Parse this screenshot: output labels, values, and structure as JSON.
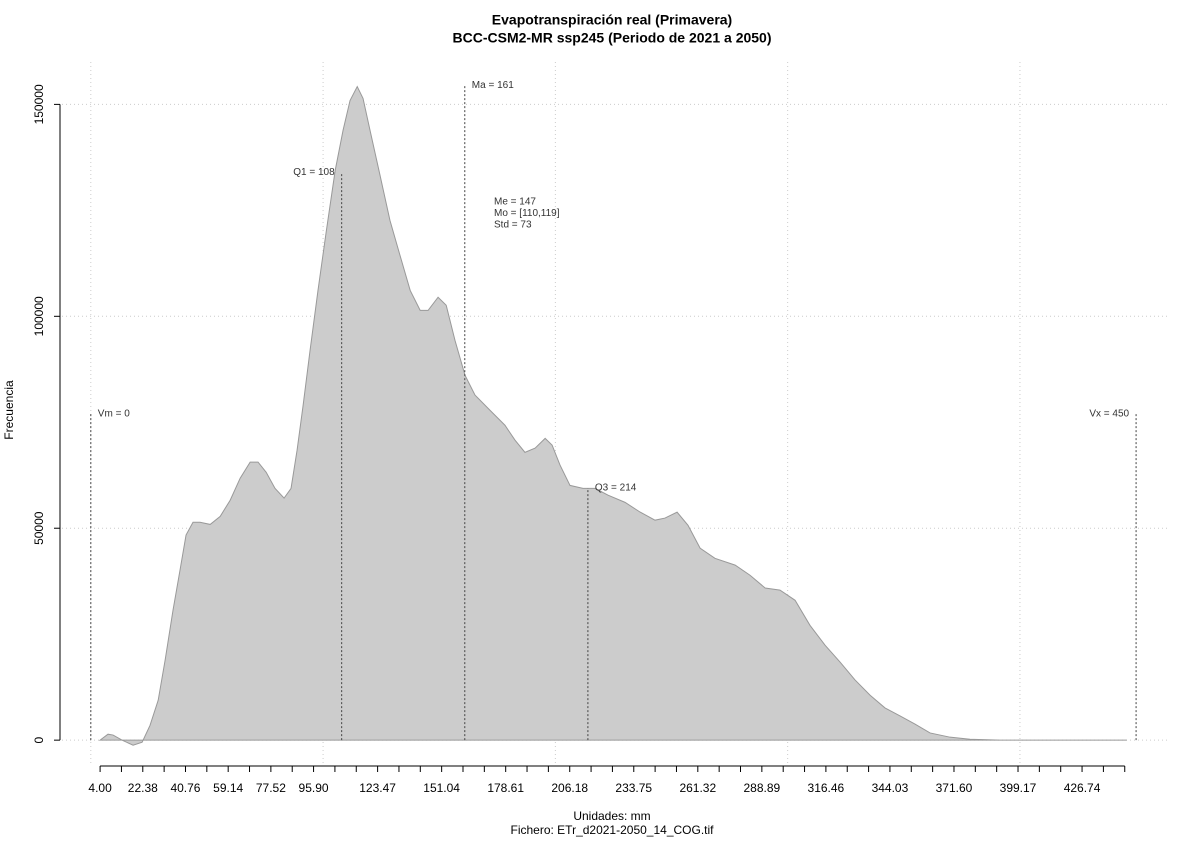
{
  "chart_data": {
    "type": "area",
    "title": "Evapotranspiración real (Primavera)",
    "subtitle": "BCC-CSM2-MR ssp245 (Periodo de 2021 a 2050)",
    "x_label": "Unidades: mm",
    "y_label": "Frecuencia",
    "footer": "Fichero: ETr_d2021-2050_14_COG.tif",
    "color": "#cccccc",
    "line_color": "#999999",
    "grid": true,
    "xlim": [
      -12.4,
      464.6
    ],
    "ylim": [
      -6100,
      160000
    ],
    "xticks": [
      {
        "value": 4,
        "label": "4.00"
      },
      22.38,
      40.76,
      59.14,
      77.52,
      {
        "value": 95.9,
        "label": "95.90"
      },
      123.47,
      151.04,
      178.61,
      206.18,
      233.75,
      261.32,
      288.89,
      316.46,
      344.03,
      {
        "value": 371.6,
        "label": "371.60"
      },
      399.17,
      426.74
    ],
    "xminor_ticks": [
      13.19,
      31.57,
      49.95,
      68.33,
      86.71,
      105.09,
      114.28,
      132.66,
      141.85,
      160.23,
      169.42,
      187.8,
      196.99,
      215.37,
      224.56,
      242.94,
      252.13,
      270.51,
      279.7,
      298.08,
      307.27,
      325.65,
      334.84,
      353.22,
      362.41,
      380.79,
      389.98,
      408.36,
      417.55,
      435.93,
      445.12
    ],
    "xgrid": [
      0,
      100,
      200,
      300,
      400
    ],
    "yticks": [
      0,
      50000,
      100000,
      150000
    ],
    "x": [
      4,
      7.4,
      9.6,
      13.5,
      18.2,
      22.1,
      25.5,
      29,
      32,
      35.4,
      38.4,
      41,
      44,
      47,
      51.4,
      55.7,
      60,
      64.3,
      68.6,
      72,
      75.5,
      79.3,
      83.2,
      86.2,
      88.8,
      91.4,
      94.4,
      97.8,
      101.3,
      105.2,
      108.6,
      111.6,
      114.7,
      117.2,
      120.2,
      124.5,
      128.8,
      133.1,
      137.5,
      141.8,
      145.2,
      149.5,
      153,
      156.8,
      161.1,
      165.4,
      171.9,
      178.3,
      182.6,
      186.9,
      191.3,
      195.6,
      198.6,
      202,
      206.3,
      211.9,
      217.1,
      222.7,
      230,
      236.5,
      242.9,
      247.2,
      252.4,
      257.1,
      262.3,
      268.7,
      277.4,
      283.8,
      290.3,
      296.7,
      303.2,
      309.6,
      316.1,
      322.6,
      329,
      335.5,
      341.9,
      348.4,
      354.8,
      361.3,
      369.9,
      378.5,
      391.4,
      446
    ],
    "values": [
      0,
      1400,
      1200,
      0,
      -1200,
      -500,
      3500,
      9400,
      18900,
      30700,
      40100,
      48400,
      51400,
      51400,
      50900,
      52800,
      56600,
      61800,
      65600,
      65600,
      63200,
      59400,
      57100,
      59400,
      68400,
      79000,
      92000,
      106100,
      119800,
      134400,
      143900,
      150900,
      154200,
      151400,
      143900,
      133300,
      122600,
      114400,
      106100,
      101400,
      101400,
      104500,
      102600,
      94300,
      86100,
      81400,
      77800,
      74300,
      70800,
      67900,
      68900,
      71200,
      69600,
      64900,
      60100,
      59400,
      59400,
      57800,
      56100,
      53800,
      51900,
      52400,
      53800,
      50700,
      45300,
      42900,
      41300,
      38900,
      35900,
      35400,
      33000,
      27100,
      22400,
      18400,
      14200,
      10600,
      7600,
      5700,
      3800,
      1700,
      700,
      200,
      0,
      0
    ],
    "markers": [
      {
        "label": "Vm = 0",
        "value": 0,
        "y": 77000
      },
      {
        "label": "Q1 = 108",
        "value": 108,
        "y": 134000
      },
      {
        "label": "Ma = 161",
        "value": 161,
        "y": 154500
      },
      {
        "label": "Q3 = 214",
        "value": 214,
        "y": 59500
      },
      {
        "label": "Vx = 450",
        "value": 450,
        "y": 77000
      }
    ],
    "stats": [
      "Me = 147",
      "Mo = [110,119]",
      "Std = 73"
    ]
  }
}
